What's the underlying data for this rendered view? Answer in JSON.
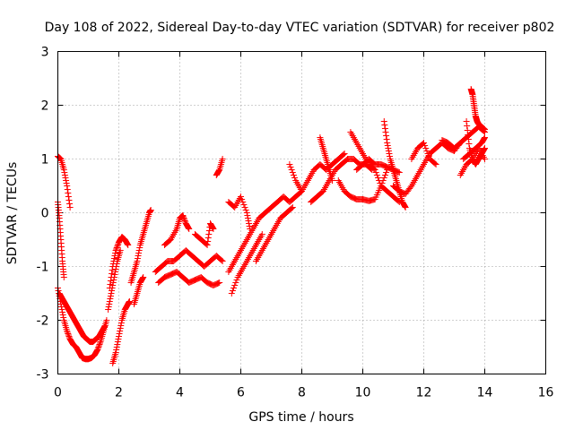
{
  "chart_data": {
    "type": "scatter",
    "title": "Day 108 of 2022, Sidereal Day-to-day VTEC variation (SDTVAR) for receiver p802",
    "xlabel": "GPS time / hours",
    "ylabel": "SDTVAR / TECUs",
    "xlim": [
      0,
      16
    ],
    "ylim": [
      -3,
      3
    ],
    "xticks": [
      "0",
      "2",
      "4",
      "6",
      "8",
      "10",
      "12",
      "14",
      "16"
    ],
    "yticks": [
      "-3",
      "-2",
      "-1",
      "0",
      "1",
      "2",
      "3"
    ],
    "grid": true,
    "marker": "+",
    "color": "#ff0000",
    "series": [
      {
        "name": "SDTVAR",
        "tracks": [
          [
            [
              0.0,
              1.05
            ],
            [
              0.1,
              1.0
            ],
            [
              0.2,
              0.8
            ],
            [
              0.3,
              0.5
            ],
            [
              0.4,
              0.1
            ]
          ],
          [
            [
              0.0,
              -1.4
            ],
            [
              0.1,
              -1.7
            ],
            [
              0.2,
              -2.0
            ],
            [
              0.3,
              -2.2
            ],
            [
              0.4,
              -2.35
            ],
            [
              0.5,
              -2.45
            ],
            [
              0.6,
              -2.5
            ],
            [
              0.7,
              -2.6
            ],
            [
              0.8,
              -2.7
            ],
            [
              0.9,
              -2.72
            ],
            [
              1.0,
              -2.72
            ],
            [
              1.1,
              -2.7
            ],
            [
              1.2,
              -2.65
            ],
            [
              1.3,
              -2.55
            ],
            [
              1.4,
              -2.4
            ],
            [
              1.5,
              -2.2
            ],
            [
              1.6,
              -2.0
            ]
          ],
          [
            [
              0.05,
              -1.5
            ],
            [
              0.15,
              -1.6
            ],
            [
              0.25,
              -1.7
            ],
            [
              0.35,
              -1.8
            ],
            [
              0.45,
              -1.9
            ],
            [
              0.55,
              -2.0
            ],
            [
              0.65,
              -2.1
            ],
            [
              0.75,
              -2.2
            ],
            [
              0.85,
              -2.3
            ],
            [
              0.95,
              -2.35
            ],
            [
              1.05,
              -2.4
            ],
            [
              1.15,
              -2.4
            ],
            [
              1.25,
              -2.35
            ],
            [
              1.35,
              -2.3
            ],
            [
              1.45,
              -2.2
            ],
            [
              1.55,
              -2.1
            ]
          ],
          [
            [
              0.0,
              0.2
            ],
            [
              0.05,
              -0.1
            ],
            [
              0.1,
              -0.5
            ],
            [
              0.15,
              -0.9
            ],
            [
              0.2,
              -1.2
            ]
          ],
          [
            [
              1.8,
              -2.8
            ],
            [
              1.9,
              -2.6
            ],
            [
              2.0,
              -2.3
            ],
            [
              2.1,
              -2.0
            ],
            [
              2.2,
              -1.8
            ],
            [
              2.3,
              -1.7
            ],
            [
              2.35,
              -1.65
            ]
          ],
          [
            [
              1.7,
              -1.4
            ],
            [
              1.8,
              -1.0
            ],
            [
              1.9,
              -0.7
            ],
            [
              2.0,
              -0.55
            ],
            [
              2.1,
              -0.45
            ],
            [
              2.2,
              -0.5
            ],
            [
              2.3,
              -0.6
            ]
          ],
          [
            [
              1.65,
              -1.8
            ],
            [
              1.75,
              -1.5
            ],
            [
              1.85,
              -1.2
            ],
            [
              1.95,
              -0.9
            ],
            [
              2.05,
              -0.7
            ]
          ],
          [
            [
              2.4,
              -1.3
            ],
            [
              2.5,
              -1.1
            ],
            [
              2.6,
              -0.9
            ],
            [
              2.7,
              -0.6
            ],
            [
              2.8,
              -0.4
            ],
            [
              2.9,
              -0.2
            ],
            [
              3.0,
              0.0
            ],
            [
              3.05,
              0.05
            ]
          ],
          [
            [
              2.5,
              -1.7
            ],
            [
              2.6,
              -1.5
            ],
            [
              2.7,
              -1.3
            ],
            [
              2.8,
              -1.2
            ]
          ],
          [
            [
              3.2,
              -1.1
            ],
            [
              3.4,
              -1.0
            ],
            [
              3.6,
              -0.9
            ],
            [
              3.8,
              -0.9
            ],
            [
              4.0,
              -0.8
            ],
            [
              4.2,
              -0.7
            ],
            [
              4.4,
              -0.8
            ],
            [
              4.6,
              -0.9
            ],
            [
              4.8,
              -1.0
            ],
            [
              5.0,
              -0.9
            ],
            [
              5.2,
              -0.8
            ],
            [
              5.4,
              -0.9
            ]
          ],
          [
            [
              3.3,
              -1.3
            ],
            [
              3.5,
              -1.2
            ],
            [
              3.7,
              -1.15
            ],
            [
              3.9,
              -1.1
            ],
            [
              4.1,
              -1.2
            ],
            [
              4.3,
              -1.3
            ],
            [
              4.5,
              -1.25
            ],
            [
              4.7,
              -1.2
            ],
            [
              4.9,
              -1.3
            ],
            [
              5.1,
              -1.35
            ],
            [
              5.3,
              -1.3
            ]
          ],
          [
            [
              3.5,
              -0.6
            ],
            [
              3.7,
              -0.5
            ],
            [
              3.9,
              -0.3
            ],
            [
              4.0,
              -0.1
            ],
            [
              4.1,
              -0.05
            ],
            [
              4.2,
              -0.2
            ],
            [
              4.3,
              -0.3
            ]
          ],
          [
            [
              4.5,
              -0.4
            ],
            [
              4.7,
              -0.5
            ],
            [
              4.9,
              -0.6
            ],
            [
              5.0,
              -0.2
            ],
            [
              5.1,
              -0.3
            ]
          ],
          [
            [
              5.2,
              0.7
            ],
            [
              5.3,
              0.8
            ],
            [
              5.4,
              1.0
            ]
          ],
          [
            [
              5.6,
              -1.1
            ],
            [
              5.8,
              -0.9
            ],
            [
              6.0,
              -0.7
            ],
            [
              6.2,
              -0.5
            ],
            [
              6.4,
              -0.3
            ],
            [
              6.6,
              -0.1
            ],
            [
              6.8,
              0.0
            ],
            [
              7.0,
              0.1
            ],
            [
              7.2,
              0.2
            ],
            [
              7.4,
              0.3
            ],
            [
              7.6,
              0.2
            ],
            [
              7.8,
              0.3
            ],
            [
              8.0,
              0.4
            ]
          ],
          [
            [
              5.6,
              0.2
            ],
            [
              5.8,
              0.1
            ],
            [
              6.0,
              0.3
            ],
            [
              6.2,
              0.0
            ],
            [
              6.3,
              -0.3
            ]
          ],
          [
            [
              5.7,
              -1.5
            ],
            [
              5.9,
              -1.2
            ],
            [
              6.1,
              -1.0
            ],
            [
              6.3,
              -0.8
            ],
            [
              6.5,
              -0.6
            ],
            [
              6.7,
              -0.4
            ]
          ],
          [
            [
              6.5,
              -0.9
            ],
            [
              6.7,
              -0.7
            ],
            [
              6.9,
              -0.5
            ],
            [
              7.1,
              -0.3
            ],
            [
              7.3,
              -0.1
            ],
            [
              7.5,
              0.0
            ],
            [
              7.7,
              0.1
            ]
          ],
          [
            [
              7.6,
              0.9
            ],
            [
              7.8,
              0.6
            ],
            [
              8.0,
              0.4
            ],
            [
              8.2,
              0.6
            ],
            [
              8.4,
              0.8
            ],
            [
              8.6,
              0.9
            ],
            [
              8.8,
              0.8
            ],
            [
              9.0,
              0.9
            ],
            [
              9.2,
              1.0
            ],
            [
              9.4,
              1.1
            ]
          ],
          [
            [
              8.3,
              0.2
            ],
            [
              8.5,
              0.3
            ],
            [
              8.7,
              0.4
            ],
            [
              8.9,
              0.6
            ],
            [
              9.1,
              0.8
            ],
            [
              9.3,
              0.9
            ],
            [
              9.5,
              1.0
            ],
            [
              9.7,
              1.0
            ],
            [
              9.9,
              0.9
            ],
            [
              10.1,
              0.9
            ],
            [
              10.3,
              0.8
            ]
          ],
          [
            [
              8.6,
              1.4
            ],
            [
              8.7,
              1.2
            ],
            [
              8.8,
              1.0
            ],
            [
              8.9,
              0.8
            ],
            [
              9.0,
              0.6
            ]
          ],
          [
            [
              9.2,
              0.6
            ],
            [
              9.4,
              0.4
            ],
            [
              9.6,
              0.3
            ],
            [
              9.8,
              0.25
            ],
            [
              10.0,
              0.25
            ],
            [
              10.2,
              0.22
            ],
            [
              10.4,
              0.25
            ],
            [
              10.6,
              0.5
            ],
            [
              10.8,
              0.8
            ]
          ],
          [
            [
              9.6,
              1.5
            ],
            [
              9.8,
              1.3
            ],
            [
              10.0,
              1.1
            ],
            [
              10.2,
              0.9
            ],
            [
              10.4,
              0.8
            ],
            [
              10.6,
              0.5
            ],
            [
              10.8,
              0.4
            ],
            [
              11.0,
              0.3
            ],
            [
              11.2,
              0.2
            ]
          ],
          [
            [
              9.8,
              0.8
            ],
            [
              10.0,
              0.9
            ],
            [
              10.2,
              1.0
            ],
            [
              10.4,
              0.9
            ],
            [
              10.6,
              0.9
            ],
            [
              10.8,
              0.85
            ],
            [
              11.0,
              0.8
            ],
            [
              11.2,
              0.75
            ]
          ],
          [
            [
              10.7,
              1.7
            ],
            [
              10.8,
              1.3
            ],
            [
              10.9,
              1.0
            ],
            [
              11.0,
              0.8
            ],
            [
              11.1,
              0.6
            ],
            [
              11.2,
              0.4
            ],
            [
              11.3,
              0.2
            ],
            [
              11.4,
              0.1
            ]
          ],
          [
            [
              11.0,
              0.5
            ],
            [
              11.2,
              0.4
            ],
            [
              11.4,
              0.35
            ],
            [
              11.6,
              0.5
            ],
            [
              11.8,
              0.7
            ],
            [
              12.0,
              0.9
            ],
            [
              12.2,
              1.1
            ],
            [
              12.4,
              1.2
            ],
            [
              12.6,
              1.3
            ],
            [
              12.8,
              1.2
            ],
            [
              13.0,
              1.15
            ],
            [
              13.2,
              1.3
            ]
          ],
          [
            [
              11.6,
              1.0
            ],
            [
              11.8,
              1.2
            ],
            [
              12.0,
              1.3
            ],
            [
              12.2,
              1.0
            ],
            [
              12.4,
              0.9
            ]
          ],
          [
            [
              12.6,
              1.35
            ],
            [
              12.8,
              1.3
            ],
            [
              13.0,
              1.2
            ],
            [
              13.2,
              1.3
            ],
            [
              13.4,
              1.4
            ],
            [
              13.6,
              1.5
            ],
            [
              13.8,
              1.6
            ],
            [
              14.0,
              1.5
            ]
          ],
          [
            [
              13.2,
              0.7
            ],
            [
              13.4,
              0.9
            ],
            [
              13.6,
              1.0
            ],
            [
              13.8,
              1.2
            ],
            [
              14.0,
              1.0
            ]
          ],
          [
            [
              13.4,
              1.7
            ],
            [
              13.5,
              1.2
            ],
            [
              13.6,
              1.0
            ],
            [
              13.7,
              0.9
            ],
            [
              13.8,
              1.0
            ],
            [
              13.9,
              1.1
            ],
            [
              14.0,
              1.2
            ]
          ],
          [
            [
              13.55,
              2.3
            ],
            [
              13.6,
              2.2
            ],
            [
              13.65,
              2.0
            ],
            [
              13.7,
              1.8
            ],
            [
              13.75,
              1.7
            ],
            [
              13.8,
              1.65
            ],
            [
              13.9,
              1.6
            ],
            [
              14.0,
              1.55
            ]
          ],
          [
            [
              13.3,
              1.0
            ],
            [
              13.5,
              1.1
            ],
            [
              13.7,
              1.2
            ],
            [
              13.9,
              1.3
            ],
            [
              14.0,
              1.4
            ]
          ]
        ]
      }
    ]
  }
}
